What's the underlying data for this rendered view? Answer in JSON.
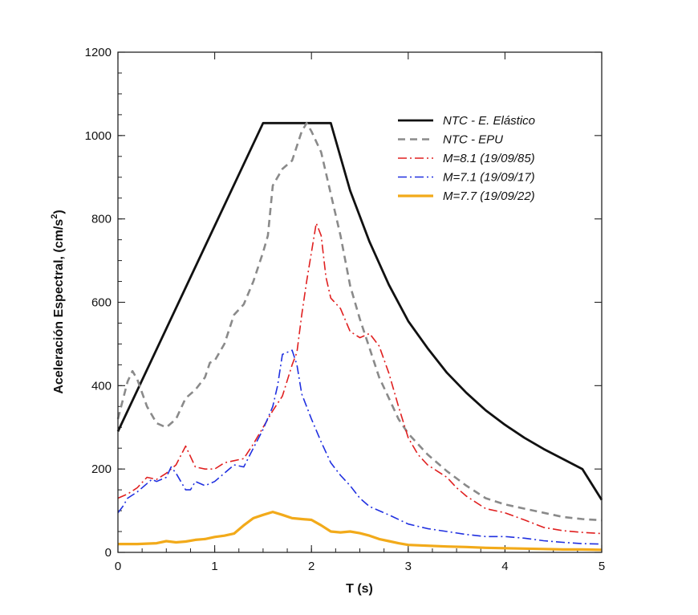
{
  "chart_data": {
    "type": "line",
    "xlabel": "T (s)",
    "ylabel_main": "Aceleración Espectral, (cm/s",
    "ylabel_sup": "2",
    "ylabel_close": ")",
    "xlim": [
      0,
      5
    ],
    "ylim": [
      0,
      1200
    ],
    "x_ticks": [
      0,
      1,
      2,
      3,
      4,
      5
    ],
    "x_tick_labels": [
      "0",
      "1",
      "2",
      "3",
      "4",
      "5"
    ],
    "y_ticks": [
      0,
      200,
      400,
      600,
      800,
      1000,
      1200
    ],
    "y_tick_labels": [
      "0",
      "200",
      "400",
      "600",
      "800",
      "1000",
      "1200"
    ],
    "legend_position": "top-right",
    "series": [
      {
        "name": "NTC - E. Elástico",
        "color": "#111111",
        "style": "solid",
        "points": [
          [
            0,
            290
          ],
          [
            1.5,
            1030
          ],
          [
            2.2,
            1030
          ],
          [
            2.4,
            868
          ],
          [
            2.6,
            745
          ],
          [
            2.8,
            642
          ],
          [
            3.0,
            555
          ],
          [
            3.2,
            490
          ],
          [
            3.4,
            431
          ],
          [
            3.6,
            383
          ],
          [
            3.8,
            341
          ],
          [
            4.0,
            306
          ],
          [
            4.2,
            275
          ],
          [
            4.4,
            248
          ],
          [
            4.6,
            224
          ],
          [
            4.8,
            200
          ],
          [
            5.0,
            126
          ]
        ]
      },
      {
        "name": "NTC - EPU",
        "color": "#8a8a8a",
        "style": "dashed",
        "points": [
          [
            0,
            320
          ],
          [
            0.05,
            365
          ],
          [
            0.1,
            410
          ],
          [
            0.15,
            435
          ],
          [
            0.2,
            415
          ],
          [
            0.3,
            350
          ],
          [
            0.4,
            310
          ],
          [
            0.5,
            300
          ],
          [
            0.6,
            320
          ],
          [
            0.7,
            370
          ],
          [
            0.8,
            390
          ],
          [
            0.9,
            420
          ],
          [
            0.95,
            455
          ],
          [
            1.0,
            460
          ],
          [
            1.1,
            500
          ],
          [
            1.2,
            570
          ],
          [
            1.3,
            595
          ],
          [
            1.4,
            650
          ],
          [
            1.5,
            720
          ],
          [
            1.55,
            760
          ],
          [
            1.6,
            880
          ],
          [
            1.7,
            920
          ],
          [
            1.8,
            940
          ],
          [
            1.9,
            1010
          ],
          [
            1.95,
            1030
          ],
          [
            2.0,
            1010
          ],
          [
            2.1,
            960
          ],
          [
            2.2,
            860
          ],
          [
            2.3,
            760
          ],
          [
            2.4,
            640
          ],
          [
            2.5,
            560
          ],
          [
            2.6,
            490
          ],
          [
            2.7,
            420
          ],
          [
            2.8,
            370
          ],
          [
            2.9,
            320
          ],
          [
            3.0,
            285
          ],
          [
            3.2,
            235
          ],
          [
            3.4,
            195
          ],
          [
            3.6,
            160
          ],
          [
            3.8,
            130
          ],
          [
            4.0,
            115
          ],
          [
            4.2,
            105
          ],
          [
            4.4,
            95
          ],
          [
            4.6,
            85
          ],
          [
            4.8,
            80
          ],
          [
            5.0,
            77
          ]
        ]
      },
      {
        "name": "M=8.1 (19/09/85)",
        "color": "#e02020",
        "style": "dashdot",
        "points": [
          [
            0,
            130
          ],
          [
            0.1,
            140
          ],
          [
            0.2,
            155
          ],
          [
            0.3,
            180
          ],
          [
            0.4,
            175
          ],
          [
            0.5,
            190
          ],
          [
            0.6,
            210
          ],
          [
            0.7,
            255
          ],
          [
            0.75,
            230
          ],
          [
            0.8,
            205
          ],
          [
            0.9,
            200
          ],
          [
            1.0,
            200
          ],
          [
            1.1,
            215
          ],
          [
            1.2,
            220
          ],
          [
            1.3,
            225
          ],
          [
            1.4,
            260
          ],
          [
            1.5,
            300
          ],
          [
            1.6,
            340
          ],
          [
            1.7,
            375
          ],
          [
            1.8,
            450
          ],
          [
            1.85,
            480
          ],
          [
            1.9,
            570
          ],
          [
            1.95,
            650
          ],
          [
            2.0,
            720
          ],
          [
            2.05,
            790
          ],
          [
            2.1,
            760
          ],
          [
            2.15,
            660
          ],
          [
            2.2,
            610
          ],
          [
            2.3,
            585
          ],
          [
            2.4,
            530
          ],
          [
            2.5,
            515
          ],
          [
            2.6,
            525
          ],
          [
            2.7,
            495
          ],
          [
            2.8,
            430
          ],
          [
            2.9,
            350
          ],
          [
            3.0,
            275
          ],
          [
            3.1,
            235
          ],
          [
            3.2,
            210
          ],
          [
            3.3,
            195
          ],
          [
            3.4,
            180
          ],
          [
            3.5,
            155
          ],
          [
            3.6,
            135
          ],
          [
            3.8,
            105
          ],
          [
            4.0,
            95
          ],
          [
            4.2,
            78
          ],
          [
            4.4,
            60
          ],
          [
            4.6,
            52
          ],
          [
            4.8,
            48
          ],
          [
            5.0,
            45
          ]
        ]
      },
      {
        "name": "M=7.1 (19/09/17)",
        "color": "#2030e0",
        "style": "dashdot",
        "points": [
          [
            0,
            95
          ],
          [
            0.05,
            110
          ],
          [
            0.1,
            130
          ],
          [
            0.2,
            145
          ],
          [
            0.3,
            165
          ],
          [
            0.35,
            175
          ],
          [
            0.4,
            170
          ],
          [
            0.5,
            180
          ],
          [
            0.55,
            205
          ],
          [
            0.6,
            190
          ],
          [
            0.7,
            150
          ],
          [
            0.75,
            150
          ],
          [
            0.8,
            170
          ],
          [
            0.9,
            160
          ],
          [
            1.0,
            170
          ],
          [
            1.1,
            190
          ],
          [
            1.2,
            210
          ],
          [
            1.3,
            205
          ],
          [
            1.4,
            250
          ],
          [
            1.5,
            295
          ],
          [
            1.6,
            350
          ],
          [
            1.65,
            400
          ],
          [
            1.7,
            475
          ],
          [
            1.75,
            480
          ],
          [
            1.8,
            485
          ],
          [
            1.85,
            450
          ],
          [
            1.9,
            380
          ],
          [
            2.0,
            320
          ],
          [
            2.1,
            265
          ],
          [
            2.2,
            215
          ],
          [
            2.3,
            185
          ],
          [
            2.4,
            160
          ],
          [
            2.5,
            130
          ],
          [
            2.6,
            110
          ],
          [
            2.8,
            90
          ],
          [
            3.0,
            68
          ],
          [
            3.2,
            57
          ],
          [
            3.4,
            50
          ],
          [
            3.6,
            43
          ],
          [
            3.8,
            38
          ],
          [
            4.0,
            38
          ],
          [
            4.2,
            34
          ],
          [
            4.4,
            28
          ],
          [
            4.6,
            24
          ],
          [
            4.8,
            21
          ],
          [
            5.0,
            20
          ]
        ]
      },
      {
        "name": "M=7.7 (19/09/22)",
        "color": "#f2aa1a",
        "style": "solid",
        "points": [
          [
            0,
            20
          ],
          [
            0.2,
            20
          ],
          [
            0.4,
            22
          ],
          [
            0.5,
            27
          ],
          [
            0.6,
            24
          ],
          [
            0.7,
            26
          ],
          [
            0.8,
            30
          ],
          [
            0.9,
            32
          ],
          [
            1.0,
            37
          ],
          [
            1.1,
            40
          ],
          [
            1.2,
            45
          ],
          [
            1.3,
            65
          ],
          [
            1.4,
            82
          ],
          [
            1.5,
            90
          ],
          [
            1.6,
            97
          ],
          [
            1.7,
            90
          ],
          [
            1.8,
            82
          ],
          [
            1.9,
            80
          ],
          [
            2.0,
            78
          ],
          [
            2.1,
            65
          ],
          [
            2.2,
            50
          ],
          [
            2.3,
            48
          ],
          [
            2.4,
            50
          ],
          [
            2.5,
            46
          ],
          [
            2.6,
            40
          ],
          [
            2.7,
            32
          ],
          [
            2.8,
            27
          ],
          [
            2.9,
            22
          ],
          [
            3.0,
            18
          ],
          [
            3.2,
            16
          ],
          [
            3.4,
            14
          ],
          [
            3.6,
            13
          ],
          [
            3.8,
            11
          ],
          [
            4.0,
            10
          ],
          [
            4.2,
            9
          ],
          [
            4.4,
            8
          ],
          [
            4.6,
            7
          ],
          [
            4.8,
            7
          ],
          [
            5.0,
            6
          ]
        ]
      }
    ]
  }
}
